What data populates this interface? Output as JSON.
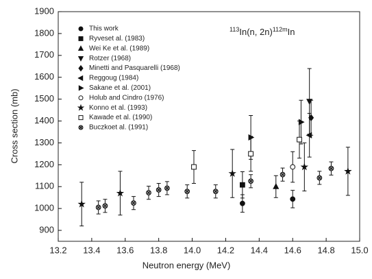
{
  "chart_data": {
    "type": "errorbar-scatter",
    "annotation": [
      "113",
      "In(n, 2n)",
      "112m",
      "In"
    ],
    "x_label": "Neutron energy (MeV)",
    "y_label": "Cross section (mb)",
    "xlim": [
      13.2,
      15.0
    ],
    "xticks": [
      13.2,
      13.4,
      13.6,
      13.8,
      {
        "value": 14,
        "label": "14.0"
      },
      14.2,
      14.4,
      14.6,
      14.8,
      {
        "value": 15,
        "label": "15.0"
      }
    ],
    "ylim": [
      850,
      1900
    ],
    "yticks": [
      900,
      1000,
      1100,
      1200,
      1300,
      1400,
      1500,
      1600,
      1700,
      1800,
      1900
    ],
    "legend": "upper-left",
    "color": "#111111",
    "series": [
      {
        "name": "This work",
        "marker": "circle",
        "x": [
          14.3,
          14.6
        ],
        "values": [
          1023,
          1043
        ],
        "errors": [
          40,
          40
        ]
      },
      {
        "name": "Ryveset al. (1983)",
        "marker": "square",
        "x": [
          14.3
        ],
        "values": [
          1108
        ],
        "errors": [
          60
        ]
      },
      {
        "name": "Wei Ke et al. (1989)",
        "marker": "triangle-up",
        "x": [
          14.5
        ],
        "values": [
          1100
        ],
        "errors": [
          50
        ]
      },
      {
        "name": "Rotzer (1968)",
        "marker": "triangle-down",
        "x": [
          14.7
        ],
        "values": [
          1490
        ],
        "errors": [
          150
        ]
      },
      {
        "name": "Minetti and Pasquarelli (1968)",
        "marker": "diamond",
        "x": [
          14.71
        ],
        "values": [
          1415
        ],
        "errors": [
          80
        ]
      },
      {
        "name": "Reggoug (1984)",
        "marker": "triangle-left",
        "x": [
          14.7
        ],
        "values": [
          1335
        ],
        "errors": [
          100
        ]
      },
      {
        "name": "Sakane et al. (2001)",
        "marker": "triangle-right",
        "x": [
          14.35,
          14.65
        ],
        "values": [
          1325,
          1395
        ],
        "errors": [
          100,
          100
        ]
      },
      {
        "name": "Holub and Cindro (1976)",
        "marker": "open-circle",
        "x": [
          14.6
        ],
        "values": [
          1190
        ],
        "errors": [
          70
        ]
      },
      {
        "name": "Konno et al. (1993)",
        "marker": "star",
        "x": [
          13.34,
          13.57,
          14.24,
          14.67,
          14.93
        ],
        "values": [
          1020,
          1070,
          1160,
          1190,
          1170
        ],
        "errors": [
          100,
          100,
          110,
          110,
          110
        ]
      },
      {
        "name": "Kawade et al. (1990)",
        "marker": "open-square",
        "x": [
          14.01,
          14.35,
          14.64
        ],
        "values": [
          1190,
          1250,
          1315
        ],
        "errors": [
          75,
          80,
          85
        ]
      },
      {
        "name": "Buczkoet al. (1991)",
        "marker": "crossed-circle",
        "x": [
          13.44,
          13.48,
          13.65,
          13.74,
          13.8,
          13.85,
          13.97,
          14.14,
          14.35,
          14.54,
          14.76,
          14.83
        ],
        "values": [
          1005,
          1012,
          1025,
          1072,
          1085,
          1093,
          1078,
          1078,
          1125,
          1155,
          1140,
          1183
        ],
        "errors": [
          30,
          30,
          30,
          30,
          30,
          30,
          30,
          30,
          30,
          30,
          30,
          30
        ]
      }
    ]
  }
}
